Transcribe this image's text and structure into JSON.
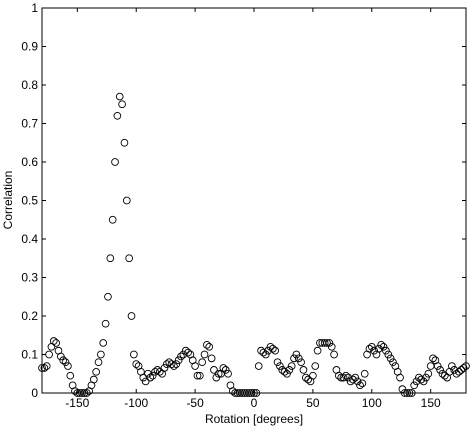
{
  "chart_data": {
    "type": "scatter",
    "xlabel": "Rotation [degrees]",
    "ylabel": "Correlation",
    "xlim": [
      -180,
      180
    ],
    "ylim": [
      0,
      1
    ],
    "xticks": [
      -150,
      -100,
      -50,
      0,
      50,
      100,
      150
    ],
    "yticks": [
      0,
      0.1,
      0.2,
      0.3,
      0.4,
      0.5,
      0.6,
      0.7,
      0.8,
      0.9,
      1
    ],
    "series": [
      {
        "color": "#000000",
        "x": [
          -180,
          -178,
          -176,
          -174,
          -172,
          -170,
          -168,
          -166,
          -164,
          -162,
          -160,
          -158,
          -156,
          -154,
          -152,
          -150,
          -148,
          -146,
          -144,
          -142,
          -140,
          -138,
          -136,
          -134,
          -132,
          -130,
          -128,
          -126,
          -124,
          -122,
          -120,
          -118,
          -116,
          -114,
          -112,
          -110,
          -108,
          -106,
          -104,
          -102,
          -100,
          -98,
          -96,
          -94,
          -92,
          -90,
          -88,
          -86,
          -84,
          -82,
          -80,
          -78,
          -76,
          -74,
          -72,
          -70,
          -68,
          -66,
          -64,
          -62,
          -60,
          -58,
          -56,
          -54,
          -52,
          -50,
          -48,
          -46,
          -44,
          -42,
          -40,
          -38,
          -36,
          -34,
          -32,
          -30,
          -28,
          -26,
          -24,
          -22,
          -20,
          -18,
          -16,
          -14,
          -12,
          -10,
          -8,
          -6,
          -4,
          -2,
          0,
          2,
          4,
          6,
          8,
          10,
          12,
          14,
          16,
          18,
          20,
          22,
          24,
          26,
          28,
          30,
          32,
          34,
          36,
          38,
          40,
          42,
          44,
          46,
          48,
          50,
          52,
          54,
          56,
          58,
          60,
          62,
          64,
          66,
          68,
          70,
          72,
          74,
          76,
          78,
          80,
          82,
          84,
          86,
          88,
          90,
          92,
          94,
          96,
          98,
          100,
          102,
          104,
          106,
          108,
          110,
          112,
          114,
          116,
          118,
          120,
          122,
          124,
          126,
          128,
          130,
          132,
          134,
          136,
          138,
          140,
          142,
          144,
          146,
          148,
          150,
          152,
          154,
          156,
          158,
          160,
          162,
          164,
          166,
          168,
          170,
          172,
          174,
          176,
          178,
          180
        ],
        "values": [
          0.065,
          0.065,
          0.07,
          0.1,
          0.12,
          0.135,
          0.13,
          0.11,
          0.095,
          0.085,
          0.08,
          0.07,
          0.045,
          0.02,
          0.005,
          0,
          0,
          0,
          0,
          0,
          0.005,
          0.02,
          0.035,
          0.055,
          0.08,
          0.1,
          0.13,
          0.18,
          0.25,
          0.35,
          0.45,
          0.6,
          0.72,
          0.77,
          0.75,
          0.65,
          0.5,
          0.35,
          0.2,
          0.1,
          0.075,
          0.07,
          0.055,
          0.04,
          0.03,
          0.05,
          0.04,
          0.045,
          0.055,
          0.06,
          0.055,
          0.05,
          0.065,
          0.075,
          0.08,
          0.075,
          0.07,
          0.075,
          0.085,
          0.095,
          0.1,
          0.11,
          0.105,
          0.1,
          0.085,
          0.07,
          0.045,
          0.045,
          0.08,
          0.1,
          0.125,
          0.12,
          0.09,
          0.06,
          0.04,
          0.05,
          0.05,
          0.065,
          0.06,
          0.05,
          0.02,
          0.005,
          0,
          0,
          0,
          0,
          0,
          0,
          0,
          0,
          0,
          0,
          0.07,
          0.11,
          0.105,
          0.1,
          0.11,
          0.12,
          0.115,
          0.11,
          0.08,
          0.07,
          0.06,
          0.055,
          0.05,
          0.06,
          0.07,
          0.09,
          0.1,
          0.09,
          0.08,
          0.06,
          0.04,
          0.035,
          0.03,
          0.045,
          0.07,
          0.11,
          0.13,
          0.13,
          0.13,
          0.13,
          0.13,
          0.12,
          0.1,
          0.06,
          0.045,
          0.04,
          0.04,
          0.045,
          0.04,
          0.03,
          0.035,
          0.04,
          0.03,
          0.02,
          0.025,
          0.05,
          0.1,
          0.115,
          0.12,
          0.11,
          0.1,
          0.115,
          0.125,
          0.12,
          0.11,
          0.1,
          0.09,
          0.08,
          0.07,
          0.055,
          0.04,
          0.01,
          0,
          0,
          0,
          0,
          0.02,
          0.03,
          0.04,
          0.035,
          0.03,
          0.04,
          0.05,
          0.07,
          0.09,
          0.085,
          0.07,
          0.06,
          0.05,
          0.045,
          0.04,
          0.055,
          0.07,
          0.06,
          0.05,
          0.055,
          0.06,
          0.065,
          0.07
        ]
      }
    ]
  }
}
